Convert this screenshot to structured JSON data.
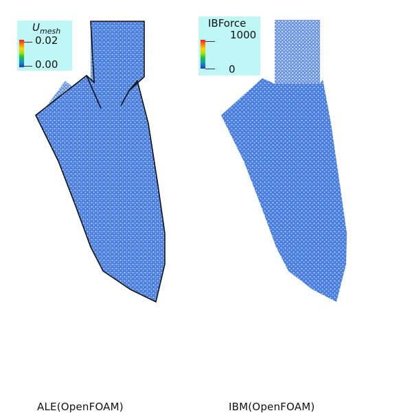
{
  "panels": [
    {
      "caption": "ALE(OpenFOAM)",
      "legend": {
        "title_main": "U",
        "title_sub": "mesh",
        "tick_max": "0.02",
        "tick_min": "0.00"
      }
    },
    {
      "caption": "IBM(OpenFOAM)",
      "legend": {
        "title_main": "IBForce",
        "tick_max": "1000",
        "tick_min": "0"
      }
    }
  ],
  "colors": {
    "mesh_fill": "#4a7fe0",
    "mesh_dot": "#ffffff",
    "outline": "#111111",
    "legend_bg": "#bff6f6"
  }
}
